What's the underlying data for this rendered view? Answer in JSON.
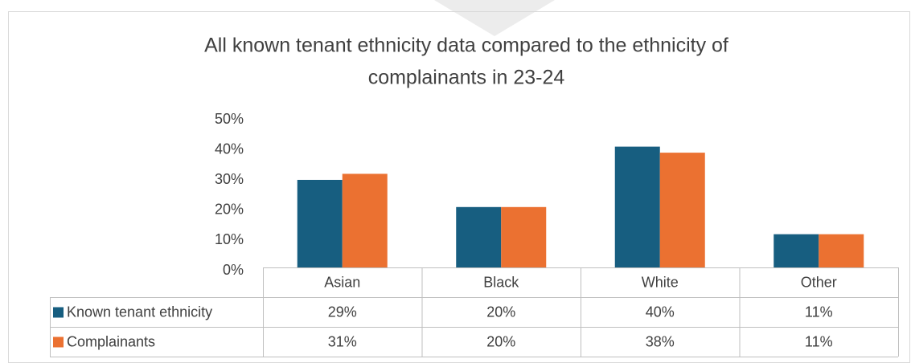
{
  "chart_data": {
    "type": "bar",
    "title": [
      "All known tenant ethnicity data compared to the ethnicity of",
      "complainants in 23-24"
    ],
    "categories": [
      "Asian",
      "Black",
      "White",
      "Other"
    ],
    "series": [
      {
        "name": "Known tenant ethnicity",
        "color": "#175e80",
        "values": [
          29,
          20,
          40,
          11
        ],
        "value_labels": [
          "29%",
          "20%",
          "40%",
          "11%"
        ]
      },
      {
        "name": "Complainants",
        "color": "#eb7131",
        "values": [
          31,
          20,
          38,
          11
        ],
        "value_labels": [
          "31%",
          "20%",
          "38%",
          "11%"
        ]
      }
    ],
    "ylim": [
      0,
      50
    ],
    "yticks": [
      {
        "value": 0,
        "label": "0%"
      },
      {
        "value": 10,
        "label": "10%"
      },
      {
        "value": 20,
        "label": "20%"
      },
      {
        "value": 30,
        "label": "30%"
      },
      {
        "value": 40,
        "label": "40%"
      },
      {
        "value": 50,
        "label": "50%"
      }
    ],
    "grid": false,
    "data_table": true
  }
}
